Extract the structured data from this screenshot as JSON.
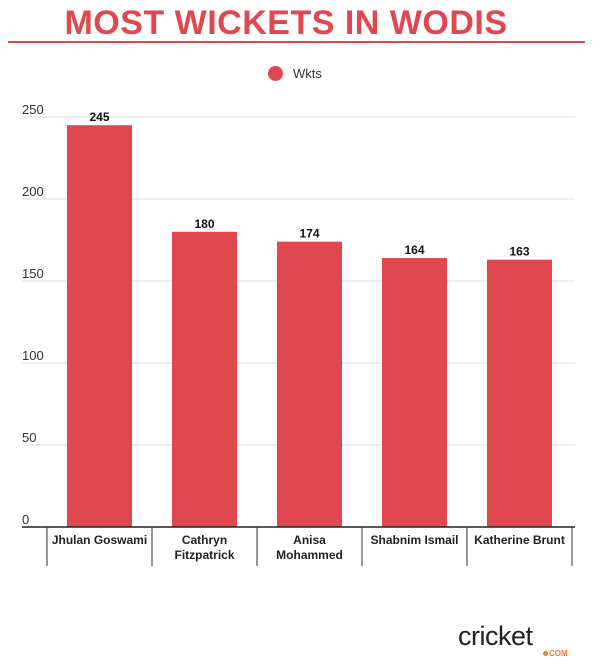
{
  "chart_data": {
    "type": "bar",
    "title": "MOST WICKETS IN WODIS",
    "legend": {
      "label": "Wkts",
      "placement": "top-center"
    },
    "categories": [
      "Jhulan Goswami",
      "Cathryn Fitzpatrick",
      "Anisa Mohammed",
      "Shabnim Ismail",
      "Katherine Brunt"
    ],
    "category_lines": [
      [
        "Jhulan Goswami"
      ],
      [
        "Cathryn",
        "Fitzpatrick"
      ],
      [
        "Anisa",
        "Mohammed"
      ],
      [
        "Shabnim Ismail"
      ],
      [
        "Katherine Brunt"
      ]
    ],
    "series": [
      {
        "name": "Wkts",
        "values": [
          245,
          180,
          174,
          164,
          163
        ]
      }
    ],
    "yticks": [
      0,
      50,
      100,
      150,
      200,
      250
    ],
    "ylim": [
      0,
      250
    ],
    "grid": true,
    "colors": {
      "bar": "#e0474f",
      "title": "#e0474f",
      "grid": "#dddddd"
    }
  },
  "branding": {
    "logo_text": "cricket",
    "logo_suffix": "COM"
  }
}
